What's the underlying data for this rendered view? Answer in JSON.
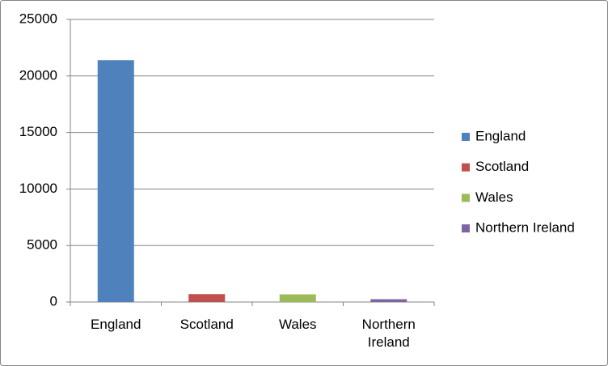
{
  "chart_data": {
    "type": "bar",
    "categories": [
      "England",
      "Scotland",
      "Wales",
      "Northern Ireland"
    ],
    "values": [
      21400,
      700,
      680,
      250
    ],
    "colors": [
      "#4f81bd",
      "#c0504d",
      "#9bbb59",
      "#8064a2"
    ],
    "ylim": [
      0,
      25000
    ],
    "yticks": [
      0,
      5000,
      10000,
      15000,
      20000,
      25000
    ],
    "grid": true,
    "legend": "right"
  }
}
